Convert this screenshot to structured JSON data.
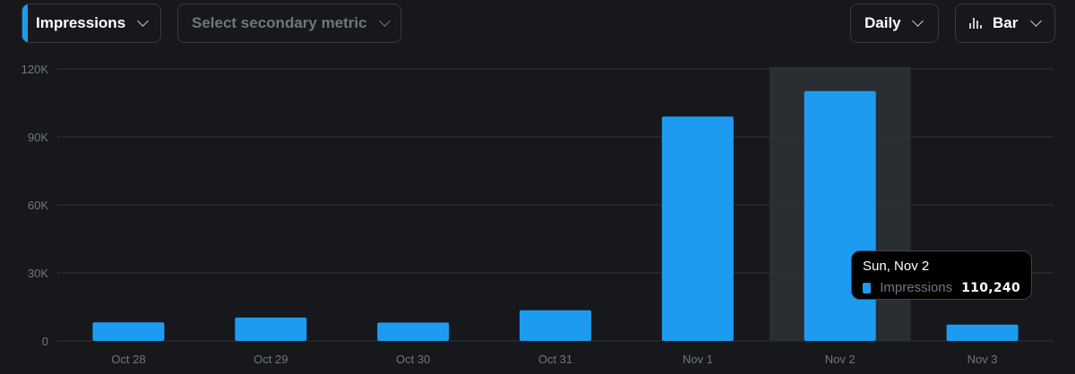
{
  "toolbar": {
    "primary_metric": "Impressions",
    "secondary_metric_placeholder": "Select secondary metric",
    "interval": "Daily",
    "chart_type": "Bar"
  },
  "colors": {
    "background": "#16181c",
    "bar": "#1d9bf0",
    "grid": "#2f3336",
    "axis_text": "#71767b",
    "highlight_band": "#2a2d31",
    "accent": "#1d9bf0"
  },
  "icons": {
    "chevron": "chevron-down-icon",
    "chart_type": "bar-chart-icon"
  },
  "chart_data": {
    "type": "bar",
    "categories": [
      "Oct 28",
      "Oct 29",
      "Oct 30",
      "Oct 31",
      "Nov 1",
      "Nov 2",
      "Nov 3"
    ],
    "series": [
      {
        "name": "Impressions",
        "values": [
          8200,
          10300,
          8100,
          13500,
          99000,
          110240,
          7200
        ]
      }
    ],
    "ylim": [
      0,
      120000
    ],
    "yticks": [
      0,
      30000,
      60000,
      90000,
      120000
    ],
    "ytick_labels": [
      "0",
      "30K",
      "60K",
      "90K",
      "120K"
    ],
    "grid": true,
    "highlighted_category": "Nov 2"
  },
  "tooltip": {
    "title": "Sun, Nov 2",
    "series_name": "Impressions",
    "value": "110,240"
  }
}
